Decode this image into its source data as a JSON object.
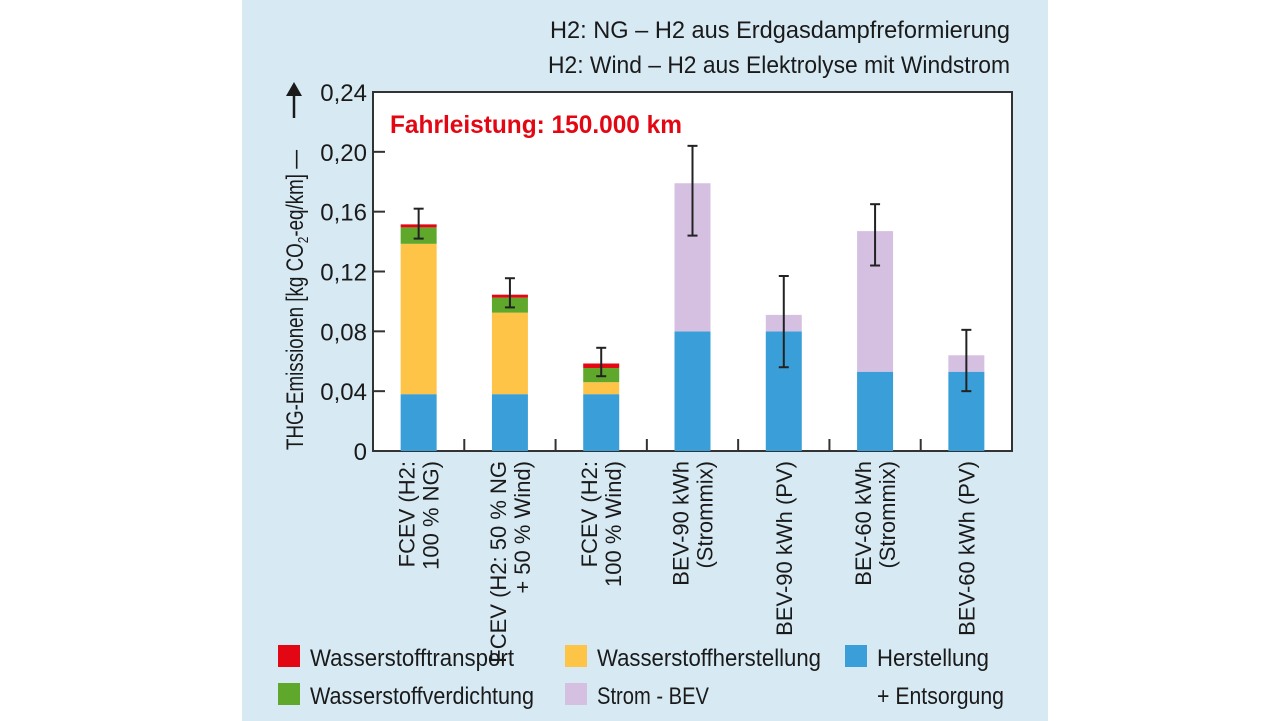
{
  "chart_data": {
    "type": "bar",
    "stacked": true,
    "notes": [
      "H2: NG – H2 aus Erdgasdampfreformierung",
      "H2: Wind – H2 aus Elektrolyse mit Windstrom"
    ],
    "annotation": "Fahrleistung: 150.000 km",
    "ylabel": {
      "main": "THG-Emissionen [kg CO",
      "sub": "2",
      "rest": "-eq/km] —"
    },
    "xlabel": "",
    "ylim": [
      0,
      0.24
    ],
    "yticks": [
      {
        "v": 0,
        "label": "0"
      },
      {
        "v": 0.04,
        "label": "0,04"
      },
      {
        "v": 0.08,
        "label": "0,08"
      },
      {
        "v": 0.12,
        "label": "0,12"
      },
      {
        "v": 0.16,
        "label": "0,16"
      },
      {
        "v": 0.2,
        "label": "0,20"
      },
      {
        "v": 0.24,
        "label": "0,24"
      }
    ],
    "categories": [
      [
        "FCEV (H2:",
        "100 % NG)"
      ],
      [
        "FCEV (H2: 50 % NG",
        "+ 50 % Wind)"
      ],
      [
        "FCEV (H2:",
        "100 % Wind)"
      ],
      [
        "BEV-90 kWh",
        "(Strommix)"
      ],
      [
        "BEV-90 kWh (PV)"
      ],
      [
        "BEV-60 kWh",
        "(Strommix)"
      ],
      [
        "BEV-60 kWh (PV)"
      ]
    ],
    "series": [
      {
        "name": "Herstellung + Entsorgung",
        "color": "#3a9fd9",
        "values": [
          0.038,
          0.038,
          0.038,
          0.08,
          0.08,
          0.053,
          0.053
        ]
      },
      {
        "name": "Wasserstoffherstellung",
        "color": "#fdc448",
        "values": [
          0.1005,
          0.0545,
          0.008,
          0,
          0,
          0,
          0
        ]
      },
      {
        "name": "Wasserstoffverdichtung",
        "color": "#5fa82b",
        "values": [
          0.011,
          0.01,
          0.0095,
          0,
          0,
          0,
          0
        ]
      },
      {
        "name": "Wasserstofftransport",
        "color": "#e30613",
        "values": [
          0.002,
          0.002,
          0.003,
          0,
          0,
          0,
          0
        ]
      },
      {
        "name": "Strom - BEV",
        "color": "#d5c0e1",
        "values": [
          0,
          0,
          0,
          0.099,
          0.011,
          0.094,
          0.011
        ]
      }
    ],
    "error_bars": [
      [
        0.142,
        0.162
      ],
      [
        0.096,
        0.1155
      ],
      [
        0.05,
        0.069
      ],
      [
        0.144,
        0.204
      ],
      [
        0.056,
        0.117
      ],
      [
        0.124,
        0.165
      ],
      [
        0.04,
        0.081
      ]
    ],
    "legend": {
      "placement": "bottom",
      "items": [
        {
          "label": "Wasserstofftransport",
          "color": "#e30613"
        },
        {
          "label": "Wasserstoffverdichtung",
          "color": "#5fa82b"
        },
        {
          "label": "Wasserstoffherstellung",
          "color": "#fdc448"
        },
        {
          "label": "Strom - BEV",
          "color": "#d5c0e1"
        },
        {
          "label": "Herstellung",
          "label2": "+ Entsorgung",
          "color": "#3a9fd9"
        }
      ]
    },
    "grid": false
  },
  "colors": {
    "panel": "#d7eaf4",
    "plot": "#ffffff"
  }
}
